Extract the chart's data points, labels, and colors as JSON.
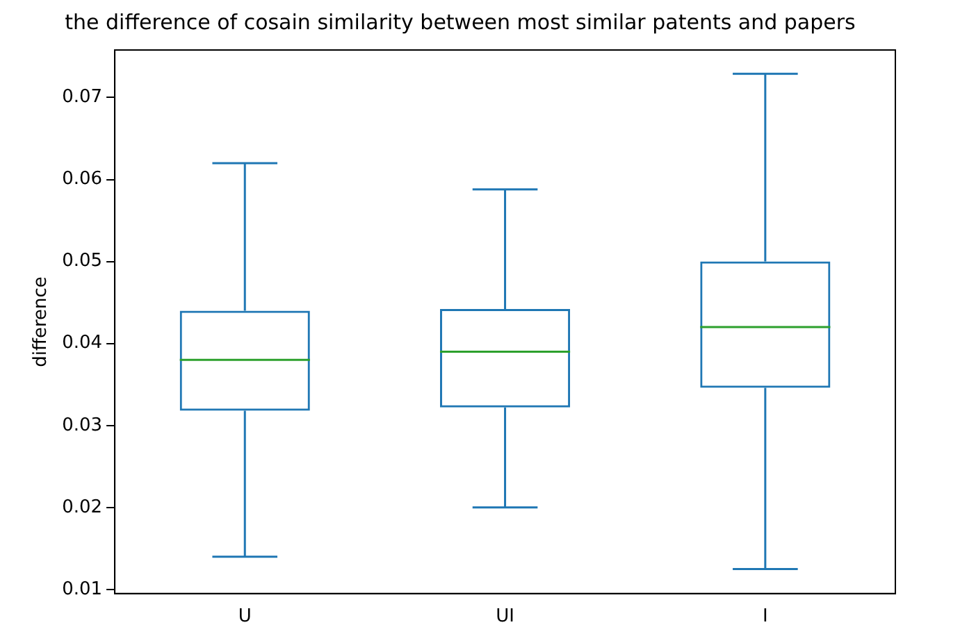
{
  "chart_data": {
    "type": "box",
    "title": "the difference of cosain similarity between most similar patents and papers",
    "ylabel": "difference",
    "categories": [
      "U",
      "UI",
      "I"
    ],
    "series": [
      {
        "color": "#1f77b4",
        "boxes": [
          {
            "low": 0.014,
            "q1": 0.0318,
            "median": 0.038,
            "q3": 0.044,
            "high": 0.062
          },
          {
            "low": 0.02,
            "q1": 0.0322,
            "median": 0.039,
            "q3": 0.0442,
            "high": 0.0588
          },
          {
            "low": 0.0125,
            "q1": 0.0346,
            "median": 0.042,
            "q3": 0.05,
            "high": 0.0729
          }
        ]
      }
    ],
    "ylim": [
      0.0095,
      0.0758
    ],
    "yticks": [
      0.01,
      0.02,
      0.03,
      0.04,
      0.05,
      0.06,
      0.07
    ],
    "grid": false,
    "legend": false
  }
}
